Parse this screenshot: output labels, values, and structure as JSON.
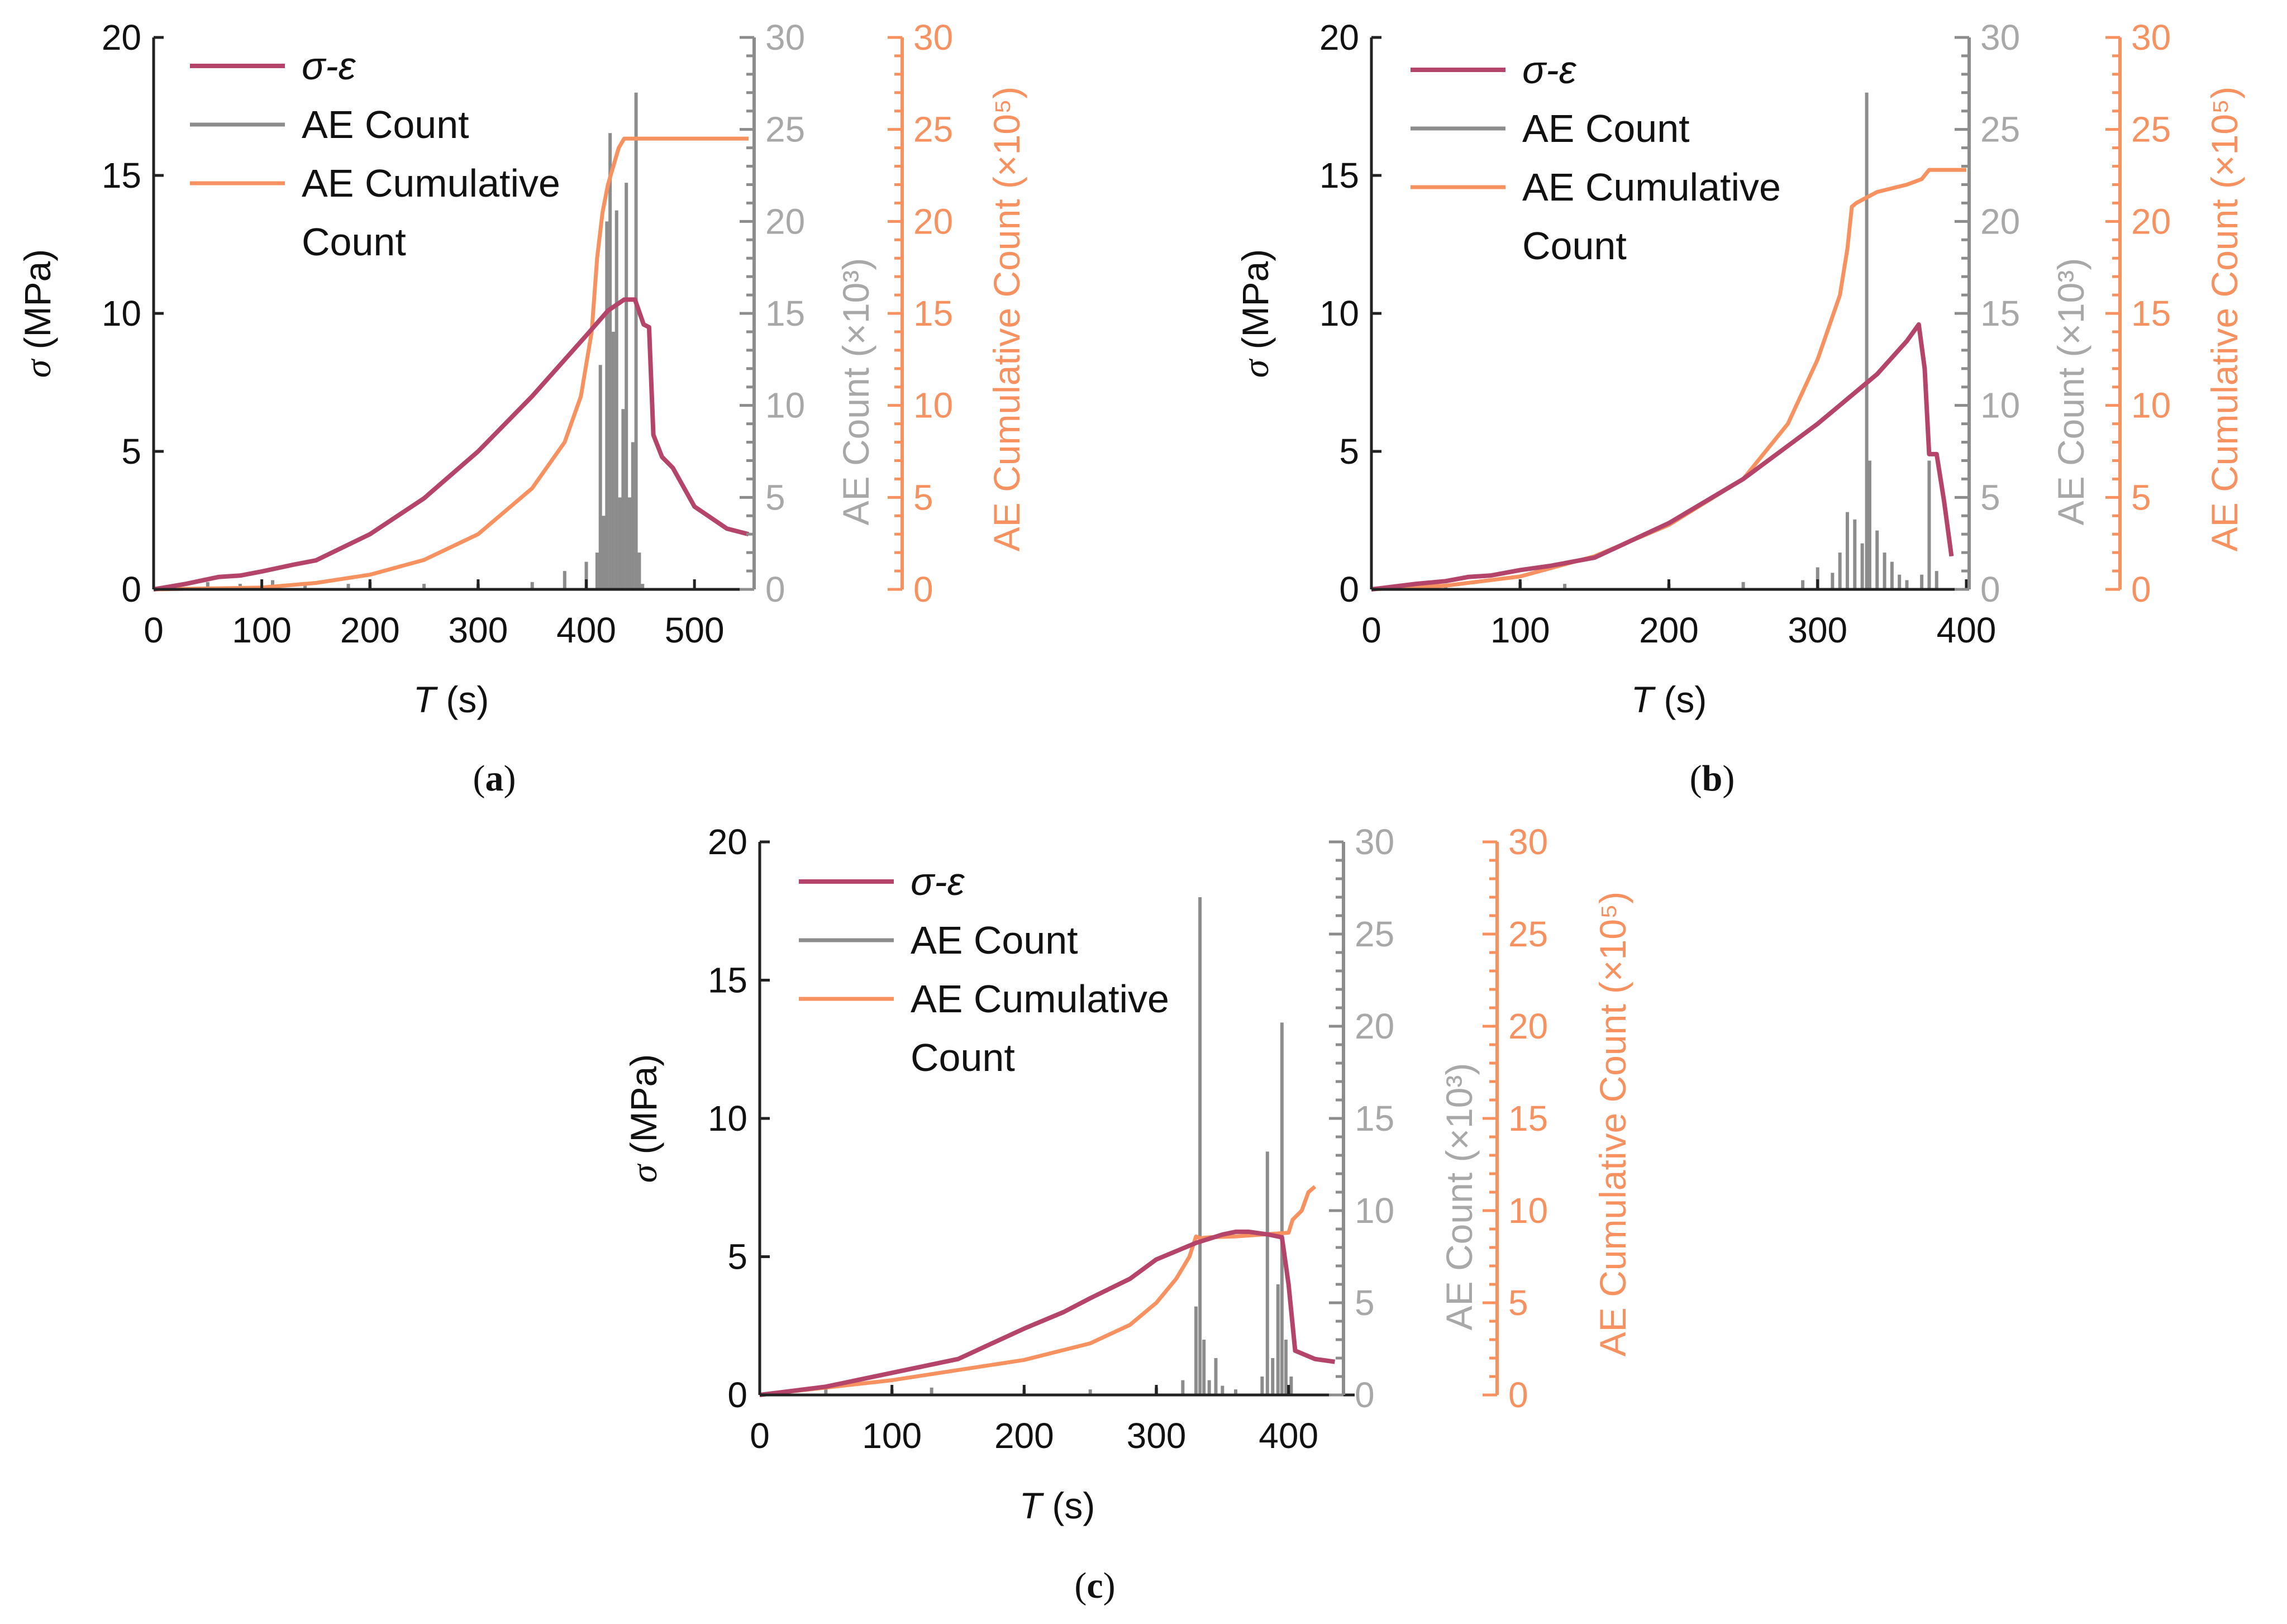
{
  "colors": {
    "stress": "#b5446a",
    "ae_count": "#8c8c8c",
    "ae_count_axis": "#a8a8a8",
    "cumulative": "#f7915f",
    "axis": "#222222"
  },
  "legend": {
    "stress": "σ-ε",
    "ae_count": "AE Count",
    "cumulative_line1": "AE Cumulative",
    "cumulative_line2": "Count"
  },
  "axes_text": {
    "xlabel_italic": "T",
    "xlabel_rest": " (s)",
    "ylabel_italic": "σ",
    "ylabel_rest": " (MPa)",
    "y2label": "AE Count (×10³)",
    "y3label": "AE Cumulative Count (×10⁵)"
  },
  "chart_data": [
    {
      "type": "line",
      "panel_label": "(a)",
      "xlim": [
        0,
        550
      ],
      "x_ticks": [
        0,
        100,
        200,
        300,
        400,
        500
      ],
      "y_left": {
        "label": "σ (MPa)",
        "lim": [
          0,
          20
        ],
        "ticks": [
          0,
          5,
          10,
          15,
          20
        ]
      },
      "y_right1": {
        "label": "AE Count (×10³)",
        "lim": [
          0,
          30
        ],
        "ticks": [
          0,
          5,
          10,
          15,
          20,
          25,
          30
        ]
      },
      "y_right2": {
        "label": "AE Cumulative Count (×10⁵)",
        "lim": [
          0,
          30
        ],
        "ticks": [
          0,
          5,
          10,
          15,
          20,
          25,
          30
        ]
      },
      "series": [
        {
          "name": "σ-ε",
          "axis": "left",
          "x": [
            0,
            30,
            60,
            80,
            100,
            130,
            150,
            200,
            250,
            300,
            350,
            400,
            420,
            435,
            445,
            453,
            458,
            462,
            470,
            480,
            500,
            530,
            550
          ],
          "y": [
            0,
            0.2,
            0.45,
            0.5,
            0.65,
            0.9,
            1.05,
            2.0,
            3.3,
            5.0,
            7.0,
            9.2,
            10.1,
            10.5,
            10.5,
            9.6,
            9.5,
            5.6,
            4.8,
            4.4,
            3.0,
            2.2,
            2.0
          ]
        },
        {
          "name": "AE Count",
          "axis": "right1",
          "x": [
            20,
            50,
            80,
            110,
            140,
            180,
            200,
            250,
            300,
            350,
            380,
            400,
            410,
            413,
            416,
            419,
            422,
            425,
            428,
            431,
            434,
            437,
            440,
            443,
            446,
            449,
            452
          ],
          "y": [
            0.3,
            0.4,
            0.3,
            0.5,
            0.4,
            0.3,
            0.4,
            0.3,
            0.3,
            0.4,
            1.0,
            1.5,
            2.0,
            12.2,
            4.0,
            20.0,
            24.8,
            14.0,
            20.6,
            5.0,
            9.8,
            22.1,
            5.0,
            8.0,
            27.0,
            2.0,
            0.3
          ]
        },
        {
          "name": "AE Cumulative Count",
          "axis": "right2",
          "x": [
            0,
            100,
            150,
            200,
            250,
            300,
            350,
            380,
            395,
            405,
            410,
            415,
            420,
            425,
            430,
            435,
            440,
            450,
            500,
            550
          ],
          "y": [
            0,
            0.1,
            0.35,
            0.8,
            1.6,
            3.0,
            5.5,
            8.0,
            10.5,
            14.0,
            18.0,
            20.5,
            22.0,
            23.0,
            24.0,
            24.5,
            24.5,
            24.5,
            24.5,
            24.5
          ]
        }
      ]
    },
    {
      "type": "line",
      "panel_label": "(b)",
      "xlim": [
        0,
        400
      ],
      "x_ticks": [
        0,
        100,
        200,
        300,
        400
      ],
      "y_left": {
        "label": "σ (MPa)",
        "lim": [
          0,
          20
        ],
        "ticks": [
          0,
          5,
          10,
          15,
          20
        ]
      },
      "y_right1": {
        "label": "AE Count (×10³)",
        "lim": [
          0,
          30
        ],
        "ticks": [
          0,
          5,
          10,
          15,
          20,
          25,
          30
        ]
      },
      "y_right2": {
        "label": "AE Cumulative Count (×10⁵)",
        "lim": [
          0,
          30
        ],
        "ticks": [
          0,
          5,
          10,
          15,
          20,
          25,
          30
        ]
      },
      "series": [
        {
          "name": "σ-ε",
          "axis": "left",
          "x": [
            0,
            30,
            50,
            65,
            80,
            100,
            120,
            135,
            150,
            200,
            250,
            300,
            340,
            360,
            368,
            372,
            375,
            380,
            385,
            390
          ],
          "y": [
            0,
            0.2,
            0.3,
            0.45,
            0.5,
            0.7,
            0.85,
            1.0,
            1.15,
            2.4,
            4.0,
            6.0,
            7.8,
            9.0,
            9.6,
            8.0,
            4.9,
            4.9,
            3.2,
            1.2
          ]
        },
        {
          "name": "AE Count",
          "axis": "right1",
          "x": [
            50,
            100,
            130,
            200,
            250,
            290,
            300,
            310,
            315,
            320,
            325,
            330,
            333,
            335,
            340,
            345,
            350,
            355,
            360,
            370,
            375,
            380
          ],
          "y": [
            0.3,
            0.4,
            0.3,
            0.3,
            0.4,
            0.5,
            1.2,
            0.9,
            2.0,
            4.2,
            3.8,
            2.5,
            27.0,
            7.0,
            3.2,
            2.0,
            1.5,
            0.8,
            0.5,
            0.8,
            7.0,
            1.0
          ]
        },
        {
          "name": "AE Cumulative Count",
          "axis": "right2",
          "x": [
            0,
            50,
            100,
            150,
            200,
            250,
            280,
            300,
            315,
            320,
            323,
            326,
            340,
            360,
            370,
            375,
            390,
            400
          ],
          "y": [
            0,
            0.2,
            0.7,
            1.8,
            3.5,
            6.0,
            9.0,
            12.5,
            16.0,
            18.5,
            20.8,
            21.0,
            21.6,
            22.0,
            22.3,
            22.8,
            22.8,
            22.8
          ]
        }
      ]
    },
    {
      "type": "line",
      "panel_label": "(c)",
      "xlim": [
        0,
        450
      ],
      "x_ticks": [
        0,
        100,
        200,
        300,
        400
      ],
      "y_left": {
        "label": "σ (MPa)",
        "lim": [
          0,
          20
        ],
        "ticks": [
          0,
          5,
          10,
          15,
          20
        ]
      },
      "y_right1": {
        "label": "AE Count (×10³)",
        "lim": [
          0,
          30
        ],
        "ticks": [
          0,
          5,
          10,
          15,
          20,
          25,
          30
        ]
      },
      "y_right2": {
        "label": "AE Cumulative Count (×10⁵)",
        "lim": [
          0,
          30
        ],
        "ticks": [
          0,
          5,
          10,
          15,
          20,
          25,
          30
        ]
      },
      "series": [
        {
          "name": "σ-ε",
          "axis": "left",
          "x": [
            0,
            50,
            100,
            130,
            150,
            200,
            230,
            250,
            280,
            300,
            330,
            350,
            360,
            370,
            385,
            395,
            400,
            405,
            420,
            435
          ],
          "y": [
            0,
            0.3,
            0.8,
            1.1,
            1.3,
            2.4,
            3.0,
            3.5,
            4.2,
            4.9,
            5.5,
            5.8,
            5.9,
            5.9,
            5.8,
            5.7,
            4.0,
            1.6,
            1.3,
            1.2
          ]
        },
        {
          "name": "AE Count",
          "axis": "right1",
          "x": [
            50,
            100,
            130,
            200,
            250,
            300,
            320,
            330,
            333,
            336,
            340,
            345,
            350,
            360,
            380,
            384,
            388,
            392,
            395,
            398,
            402
          ],
          "y": [
            0.4,
            0.3,
            0.4,
            0.3,
            0.3,
            0.4,
            0.8,
            4.8,
            27.0,
            3.0,
            0.8,
            2.0,
            0.5,
            0.3,
            1.0,
            13.2,
            2.0,
            6.0,
            20.2,
            3.0,
            1.0
          ]
        },
        {
          "name": "AE Cumulative Count",
          "axis": "right2",
          "x": [
            0,
            100,
            200,
            250,
            280,
            300,
            315,
            325,
            330,
            333,
            340,
            360,
            380,
            400,
            403,
            410,
            415,
            420
          ],
          "y": [
            0,
            0.8,
            1.9,
            2.8,
            3.8,
            5.0,
            6.3,
            7.5,
            8.6,
            8.5,
            8.55,
            8.6,
            8.7,
            8.8,
            9.5,
            10.0,
            11.0,
            11.3
          ]
        }
      ]
    }
  ]
}
